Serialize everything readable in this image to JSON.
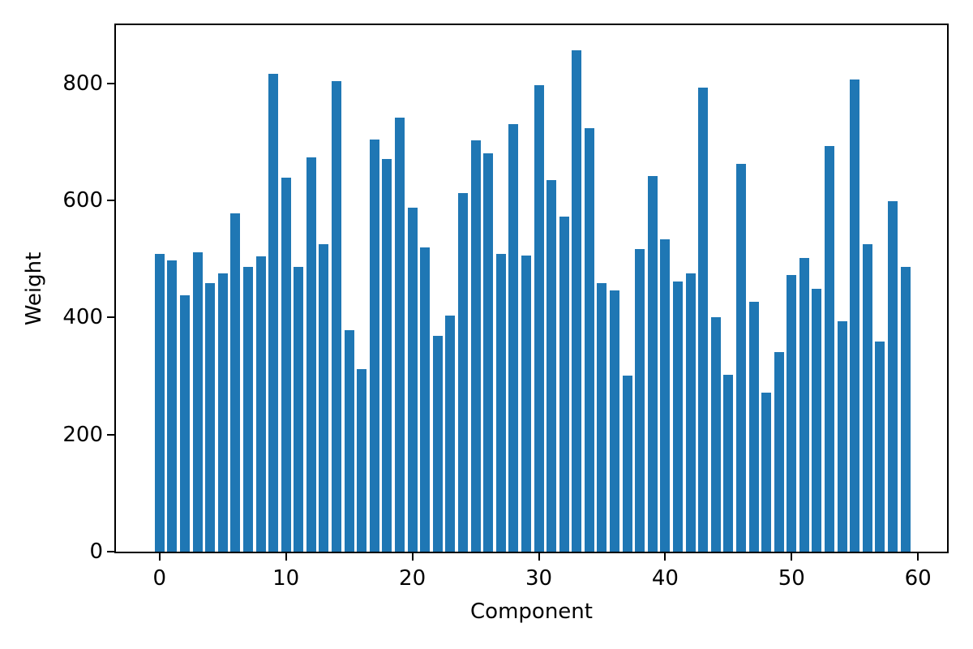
{
  "figure": {
    "background": "#ffffff"
  },
  "chart_data": {
    "type": "bar",
    "title": "",
    "xlabel": "Component",
    "ylabel": "Weight",
    "x": [
      0,
      1,
      2,
      3,
      4,
      5,
      6,
      7,
      8,
      9,
      10,
      11,
      12,
      13,
      14,
      15,
      16,
      17,
      18,
      19,
      20,
      21,
      22,
      23,
      24,
      25,
      26,
      27,
      28,
      29,
      30,
      31,
      32,
      33,
      34,
      35,
      36,
      37,
      38,
      39,
      40,
      41,
      42,
      43,
      44,
      45,
      46,
      47,
      48,
      49,
      50,
      51,
      52,
      53,
      54,
      55,
      56,
      57,
      58,
      59
    ],
    "values": [
      508,
      497,
      438,
      511,
      459,
      475,
      578,
      486,
      505,
      816,
      639,
      486,
      673,
      525,
      804,
      378,
      312,
      704,
      671,
      742,
      588,
      519,
      368,
      403,
      612,
      702,
      680,
      508,
      731,
      506,
      797,
      635,
      573,
      857,
      724,
      459,
      446,
      301,
      517,
      642,
      533,
      461,
      475,
      792,
      401,
      302,
      663,
      427,
      272,
      341,
      472,
      501,
      449,
      693,
      394,
      807,
      525,
      359,
      598,
      486
    ],
    "xticks": [
      0,
      10,
      20,
      30,
      40,
      50,
      60
    ],
    "yticks": [
      0,
      200,
      400,
      600,
      800
    ],
    "xlim": [
      -3.6,
      62.4
    ],
    "ylim": [
      0,
      902
    ],
    "grid": false,
    "legend": null,
    "bar_color": "#1f77b4",
    "axis_color": "#000000"
  }
}
